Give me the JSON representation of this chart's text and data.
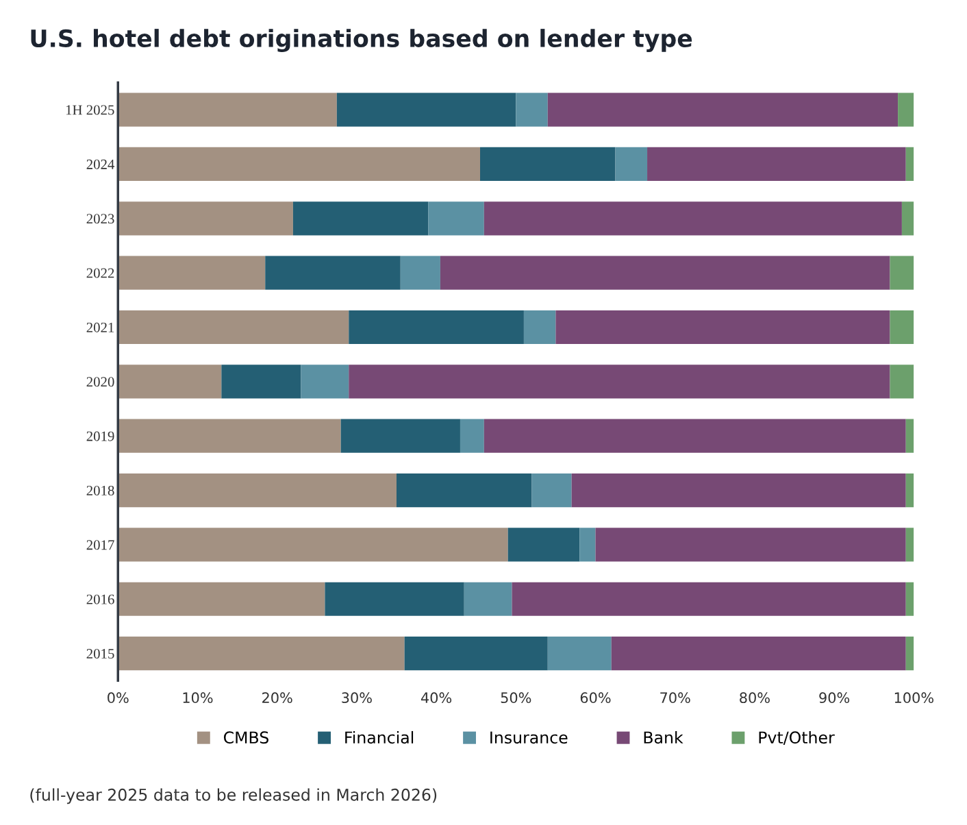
{
  "chart_data": {
    "type": "bar",
    "orientation": "horizontal",
    "stacked": true,
    "title": "U.S. hotel debt originations based on lender type",
    "categories": [
      "1H 2025",
      "2024",
      "2023",
      "2022",
      "2021",
      "2020",
      "2019",
      "2018",
      "2017",
      "2016",
      "2015"
    ],
    "series": [
      {
        "name": "CMBS",
        "color": "#a39182",
        "values": [
          27.5,
          45.5,
          22,
          18.5,
          29,
          13,
          28,
          35,
          49,
          26,
          36
        ]
      },
      {
        "name": "Financial",
        "color": "#245f74",
        "values": [
          22.5,
          17,
          17,
          17,
          22,
          10,
          15,
          17,
          9,
          17.5,
          18
        ]
      },
      {
        "name": "Insurance",
        "color": "#5b91a3",
        "values": [
          4,
          4,
          7,
          5,
          4,
          6,
          3,
          5,
          2,
          6,
          8
        ]
      },
      {
        "name": "Bank",
        "color": "#774975",
        "values": [
          44,
          32.5,
          52.5,
          56.5,
          42,
          68,
          53,
          42,
          39,
          49.5,
          37
        ]
      },
      {
        "name": "Pvt/Other",
        "color": "#6ca06c",
        "values": [
          2,
          1,
          1.5,
          3,
          3,
          3,
          1,
          1,
          1,
          1,
          1
        ]
      }
    ],
    "xlim": [
      0,
      100
    ],
    "xticks": [
      {
        "value": 0,
        "label": "0%"
      },
      {
        "value": 10,
        "label": "10%"
      },
      {
        "value": 20,
        "label": "20%"
      },
      {
        "value": 30,
        "label": "30%"
      },
      {
        "value": 40,
        "label": "40%"
      },
      {
        "value": 50,
        "label": "50%"
      },
      {
        "value": 60,
        "label": "60%"
      },
      {
        "value": 70,
        "label": "70%"
      },
      {
        "value": 80,
        "label": "80%"
      },
      {
        "value": 90,
        "label": "90%"
      },
      {
        "value": 100,
        "label": "100%"
      }
    ],
    "legend": "bottom",
    "grid": false,
    "annotations": [
      "(full-year 2025 data to be released in March 2026)"
    ]
  }
}
